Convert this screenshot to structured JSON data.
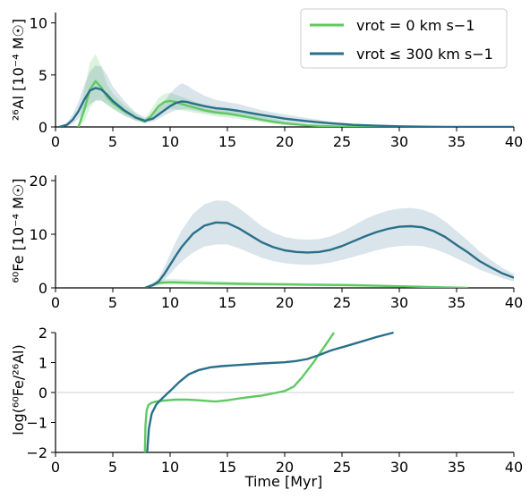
{
  "chart_data": [
    {
      "type": "line",
      "ylabel": "²⁶Al [10⁻⁴ M☉]",
      "xlim": [
        0,
        40
      ],
      "ylim": [
        0,
        11
      ],
      "xticks": [
        0,
        5,
        10,
        15,
        20,
        25,
        30,
        35,
        40
      ],
      "yticks": [
        0,
        5,
        10
      ],
      "grid": "horizontal baseline only",
      "legend": {
        "placement": "top-right",
        "entries": [
          {
            "label": "vrot = 0 km s−1",
            "color": "#5ec962"
          },
          {
            "label": "vrot ≤ 300 km s−1",
            "color": "#2a6f8a"
          }
        ]
      },
      "series": [
        {
          "name": "vrot = 0 km s−1",
          "color": "#5ec962",
          "x": [
            2.0,
            2.5,
            3.0,
            3.5,
            4.0,
            4.5,
            5.0,
            6.0,
            7.0,
            7.8,
            8.3,
            9.0,
            9.5,
            10.0,
            10.5,
            11.0,
            12.0,
            13.0,
            14.0,
            15.0,
            16.0,
            17.0,
            18.0,
            19.0,
            20.0,
            22.0,
            24.0,
            26.0,
            28.0,
            30.0
          ],
          "y": [
            0.0,
            1.6,
            3.6,
            4.4,
            3.8,
            2.9,
            2.3,
            1.5,
            0.9,
            0.5,
            1.0,
            2.0,
            2.4,
            2.5,
            2.4,
            2.2,
            1.9,
            1.6,
            1.4,
            1.3,
            1.1,
            0.9,
            0.7,
            0.5,
            0.35,
            0.15,
            0.06,
            0.02,
            0.01,
            0.0
          ],
          "band_low": [
            0.0,
            0.5,
            1.8,
            2.6,
            2.6,
            2.1,
            1.7,
            1.1,
            0.6,
            0.35,
            0.6,
            1.3,
            1.6,
            1.7,
            1.7,
            1.6,
            1.4,
            1.2,
            1.0,
            0.9,
            0.75,
            0.6,
            0.45,
            0.3,
            0.2,
            0.08,
            0.03,
            0.01,
            0.0,
            0.0
          ],
          "band_high": [
            0.0,
            3.5,
            6.2,
            7.0,
            5.8,
            4.1,
            3.2,
            2.1,
            1.3,
            0.8,
            1.6,
            2.8,
            3.2,
            3.3,
            3.1,
            2.9,
            2.5,
            2.1,
            1.9,
            1.8,
            1.5,
            1.3,
            1.0,
            0.8,
            0.55,
            0.25,
            0.1,
            0.04,
            0.02,
            0.0
          ]
        },
        {
          "name": "vrot ≤ 300 km s−1",
          "color": "#2a6f8a",
          "x": [
            0.3,
            1.0,
            1.5,
            2.0,
            2.5,
            3.0,
            3.5,
            4.0,
            4.5,
            5.0,
            6.0,
            7.0,
            7.8,
            8.5,
            9.0,
            9.5,
            10.0,
            10.5,
            11.0,
            11.5,
            12.0,
            13.0,
            14.0,
            15.0,
            16.0,
            17.0,
            18.0,
            20.0,
            22.0,
            24.0,
            26.0,
            28.0,
            30.0,
            32.0,
            34.0,
            36.0,
            40.0
          ],
          "y": [
            0.0,
            0.2,
            0.7,
            1.5,
            2.6,
            3.5,
            3.75,
            3.6,
            3.1,
            2.5,
            1.6,
            0.9,
            0.6,
            0.8,
            1.2,
            1.6,
            2.0,
            2.3,
            2.45,
            2.4,
            2.25,
            2.0,
            1.8,
            1.7,
            1.55,
            1.35,
            1.15,
            0.8,
            0.55,
            0.35,
            0.2,
            0.12,
            0.06,
            0.03,
            0.01,
            0.0,
            0.0
          ],
          "band_low": [
            0.0,
            0.1,
            0.3,
            0.8,
            1.5,
            2.2,
            2.5,
            2.5,
            2.2,
            1.8,
            1.1,
            0.6,
            0.4,
            0.5,
            0.8,
            1.1,
            1.4,
            1.6,
            1.7,
            1.7,
            1.6,
            1.4,
            1.2,
            1.1,
            1.0,
            0.85,
            0.7,
            0.45,
            0.3,
            0.18,
            0.1,
            0.05,
            0.02,
            0.01,
            0.0,
            0.0,
            0.0
          ],
          "band_high": [
            0.0,
            0.4,
            1.2,
            2.4,
            4.0,
            5.3,
            5.9,
            5.8,
            5.0,
            3.9,
            2.5,
            1.4,
            0.9,
            1.2,
            1.8,
            2.5,
            3.2,
            3.8,
            4.2,
            4.0,
            3.6,
            3.0,
            2.6,
            2.4,
            2.2,
            1.9,
            1.6,
            1.2,
            0.85,
            0.55,
            0.32,
            0.2,
            0.1,
            0.05,
            0.02,
            0.0,
            0.0
          ]
        }
      ]
    },
    {
      "type": "line",
      "ylabel": "⁶⁰Fe [10⁻⁴ M☉]",
      "xlim": [
        0,
        40
      ],
      "ylim": [
        0,
        21
      ],
      "xticks": [
        0,
        5,
        10,
        15,
        20,
        25,
        30,
        35,
        40
      ],
      "yticks": [
        0,
        10,
        20
      ],
      "series": [
        {
          "name": "vrot = 0 km s−1",
          "color": "#5ec962",
          "x": [
            7.8,
            8.5,
            9.0,
            9.5,
            10.0,
            11.0,
            12.0,
            14.0,
            16.0,
            18.0,
            20.0,
            22.0,
            24.0,
            26.0,
            28.0,
            30.0,
            32.0,
            34.0,
            36.0
          ],
          "y": [
            0.0,
            0.6,
            0.9,
            1.0,
            1.05,
            1.0,
            0.95,
            0.85,
            0.75,
            0.7,
            0.65,
            0.6,
            0.55,
            0.5,
            0.4,
            0.3,
            0.2,
            0.1,
            0.0
          ],
          "band_low": [
            0.0,
            0.3,
            0.5,
            0.6,
            0.6,
            0.6,
            0.55,
            0.5,
            0.45,
            0.4,
            0.4,
            0.35,
            0.3,
            0.28,
            0.22,
            0.15,
            0.1,
            0.05,
            0.0
          ],
          "band_high": [
            0.0,
            1.0,
            1.4,
            1.6,
            1.7,
            1.6,
            1.5,
            1.3,
            1.15,
            1.05,
            0.95,
            0.9,
            0.85,
            0.75,
            0.6,
            0.45,
            0.3,
            0.15,
            0.0
          ]
        },
        {
          "name": "vrot ≤ 300 km s−1",
          "color": "#2a6f8a",
          "x": [
            7.8,
            8.5,
            9.0,
            9.5,
            10.0,
            10.5,
            11.0,
            12.0,
            13.0,
            14.0,
            15.0,
            16.0,
            17.0,
            18.0,
            19.0,
            20.0,
            21.0,
            22.0,
            23.0,
            24.0,
            25.0,
            26.0,
            27.0,
            28.0,
            29.0,
            30.0,
            31.0,
            32.0,
            33.0,
            34.0,
            35.0,
            36.0,
            37.0,
            38.0,
            39.0,
            40.0
          ],
          "y": [
            0.0,
            0.5,
            1.2,
            2.6,
            4.3,
            6.0,
            7.6,
            10.1,
            11.6,
            12.2,
            12.1,
            11.1,
            9.8,
            8.5,
            7.6,
            7.0,
            6.7,
            6.6,
            6.7,
            7.1,
            7.8,
            8.7,
            9.6,
            10.4,
            11.0,
            11.4,
            11.5,
            11.3,
            10.6,
            9.5,
            8.0,
            6.6,
            5.0,
            3.8,
            2.7,
            1.9
          ],
          "band_low": [
            0.0,
            0.2,
            0.6,
            1.5,
            2.6,
            3.8,
            4.9,
            6.6,
            7.7,
            8.1,
            8.1,
            7.4,
            6.5,
            5.6,
            5.0,
            4.6,
            4.4,
            4.3,
            4.4,
            4.7,
            5.2,
            5.8,
            6.4,
            7.0,
            7.5,
            7.8,
            7.9,
            7.8,
            7.3,
            6.5,
            5.5,
            4.5,
            3.4,
            2.6,
            1.8,
            1.2
          ],
          "band_high": [
            0.0,
            0.8,
            1.9,
            3.9,
            6.3,
            8.6,
            10.7,
            13.8,
            15.6,
            16.3,
            16.2,
            14.9,
            13.2,
            11.5,
            10.3,
            9.5,
            9.1,
            9.0,
            9.1,
            9.6,
            10.5,
            11.6,
            12.8,
            13.7,
            14.4,
            14.8,
            14.9,
            14.6,
            13.8,
            12.4,
            10.6,
            8.8,
            6.8,
            5.2,
            3.7,
            2.6
          ]
        }
      ]
    },
    {
      "type": "line",
      "xlabel": "Time [Myr]",
      "ylabel": "log(⁶⁰Fe/²⁶Al)",
      "xlim": [
        0,
        40
      ],
      "ylim": [
        -2,
        2
      ],
      "xticks": [
        0,
        5,
        10,
        15,
        20,
        25,
        30,
        35,
        40
      ],
      "yticks": [
        -2,
        -1,
        0,
        1,
        2
      ],
      "reference_line_y": 0,
      "series": [
        {
          "name": "vrot = 0 km s−1",
          "color": "#5ec962",
          "x": [
            7.8,
            7.85,
            7.95,
            8.1,
            8.4,
            8.8,
            9.5,
            10.5,
            11.5,
            12.5,
            13.5,
            14.0,
            15.0,
            16.0,
            17.0,
            18.0,
            19.0,
            20.0,
            20.8,
            21.5,
            22.5,
            23.5,
            24.3
          ],
          "y": [
            -2.0,
            -1.1,
            -0.6,
            -0.42,
            -0.34,
            -0.3,
            -0.27,
            -0.24,
            -0.24,
            -0.26,
            -0.29,
            -0.3,
            -0.26,
            -0.2,
            -0.15,
            -0.1,
            -0.03,
            0.05,
            0.2,
            0.5,
            1.0,
            1.55,
            2.0
          ],
          "band_low": [],
          "band_high": []
        },
        {
          "name": "vrot ≤ 300 km s−1",
          "color": "#2a6f8a",
          "x": [
            8.0,
            8.15,
            8.4,
            8.8,
            9.3,
            10.0,
            10.8,
            11.6,
            12.5,
            13.5,
            14.5,
            16.0,
            18.0,
            20.0,
            21.0,
            22.0,
            23.0,
            24.0,
            26.0,
            28.0,
            29.5
          ],
          "y": [
            -2.0,
            -1.2,
            -0.7,
            -0.4,
            -0.2,
            0.05,
            0.35,
            0.6,
            0.75,
            0.84,
            0.88,
            0.92,
            0.97,
            1.01,
            1.05,
            1.12,
            1.25,
            1.4,
            1.62,
            1.85,
            2.0
          ],
          "band_low": [],
          "band_high": []
        }
      ]
    }
  ]
}
